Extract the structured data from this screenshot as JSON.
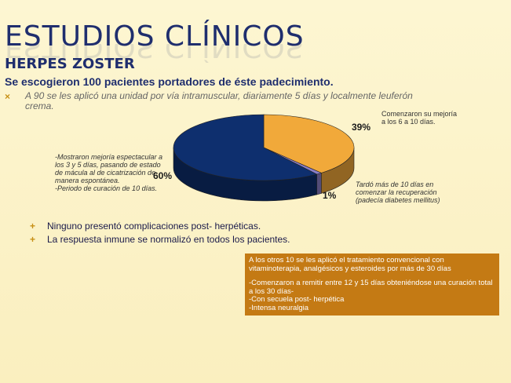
{
  "slide": {
    "title": "ESTUDIOS CLÍNICOS",
    "subtitle": "HERPES ZOSTER",
    "intro": "Se escogieron 100 pacientes portadores de éste padecimiento.",
    "bullet_italic": "A 90 se les aplicó una unidad por vía intramuscular, diariamente 5 días y localmente leuferón crema."
  },
  "chart_data": {
    "type": "pie",
    "values": [
      39,
      1,
      60
    ],
    "labels": [
      "39%",
      "1%",
      "60%"
    ],
    "colors": [
      "#f1a93a",
      "#8b7fc8",
      "#0e2f6e"
    ],
    "annotations": [
      "Comenzaron su mejoría a los 6 a 10 días.",
      "Tardó más de 10 días en comenzar la recuperación (padecía diabetes mellitus)",
      "-Mostraron mejoría espectacular a los 3 y 5 días, pasando de estado de mácula al de cicatrización de manera espontánea.\n-Periodo de curación de 10 días."
    ]
  },
  "bullets": [
    "Ninguno presentó complicaciones post- herpéticas.",
    "La respuesta inmune se normalizó en todos los pacientes."
  ],
  "note": {
    "line1": "A los otros 10 se les aplicó el tratamiento convencional con vitaminoterapia, analgésicos y esteroides por más de 30 días",
    "line2": "-Comenzaron a remitir entre 12 y 15 días obteniéndose una curación total a los 30 días-",
    "line3": "-Con secuela post- herpética",
    "line4": "-Intensa neuralgia"
  }
}
